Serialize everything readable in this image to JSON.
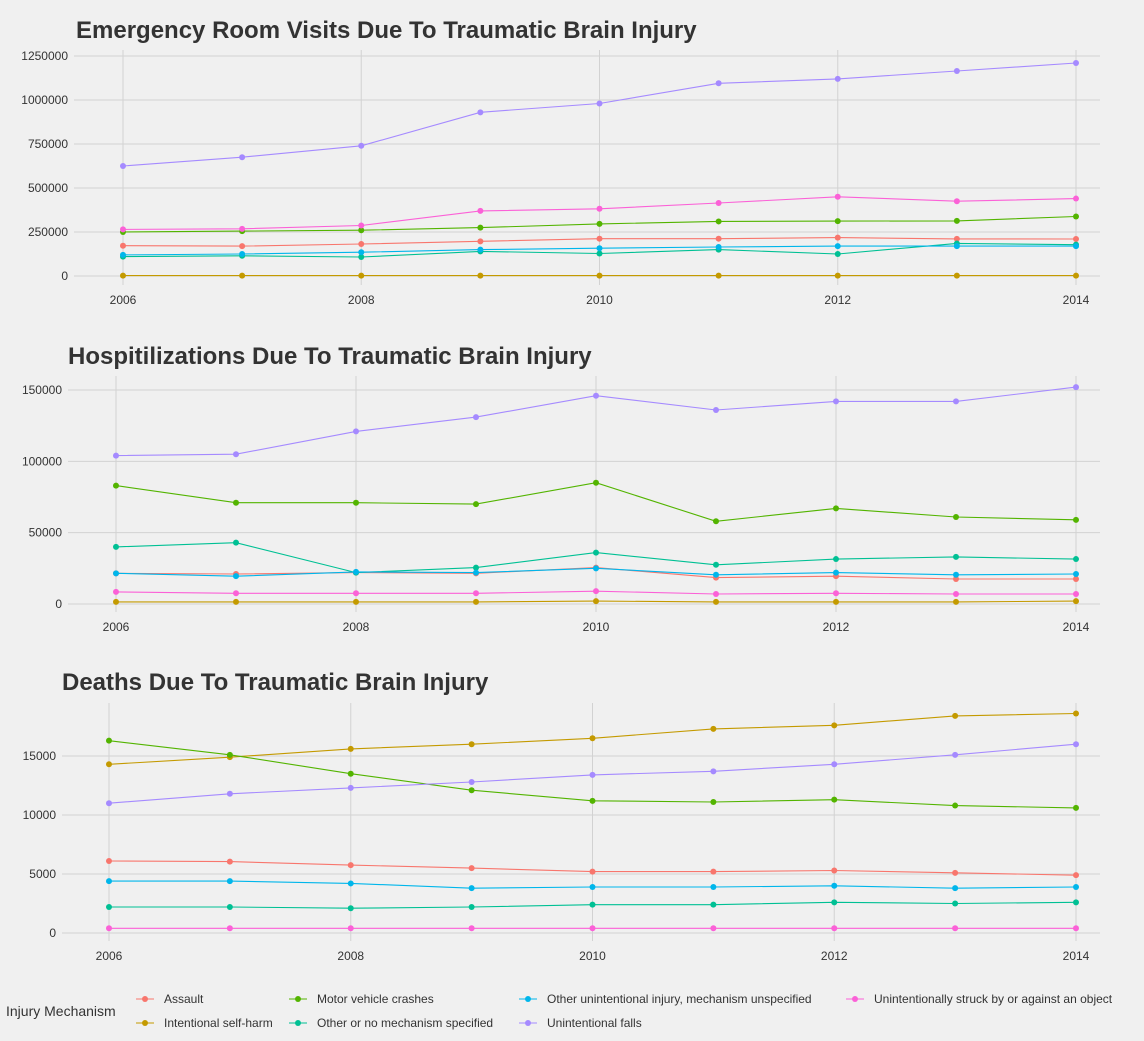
{
  "legend": {
    "title": "Injury Mechanism",
    "entries": [
      {
        "key": "assault",
        "label": "Assault",
        "color": "#F8766D"
      },
      {
        "key": "self_harm",
        "label": "Intentional self-harm",
        "color": "#C49A00"
      },
      {
        "key": "mvc",
        "label": "Motor vehicle crashes",
        "color": "#53B400"
      },
      {
        "key": "other",
        "label": "Other or no mechanism specified",
        "color": "#00C094"
      },
      {
        "key": "unspecified",
        "label": "Other unintentional injury, mechanism unspecified",
        "color": "#00B6EB"
      },
      {
        "key": "falls",
        "label": "Unintentional falls",
        "color": "#A58AFF"
      },
      {
        "key": "struck",
        "label": "Unintentionally struck by or against an object",
        "color": "#FB61D7"
      }
    ]
  },
  "chart_data": [
    {
      "type": "line",
      "title": "Emergency Room Visits Due To Traumatic Brain Injury",
      "xlabel": "",
      "ylabel": "",
      "x": [
        2006,
        2007,
        2008,
        2009,
        2010,
        2011,
        2012,
        2013,
        2014
      ],
      "x_ticks": [
        2006,
        2008,
        2010,
        2012,
        2014
      ],
      "y_ticks": [
        0,
        250000,
        500000,
        750000,
        1000000,
        1250000
      ],
      "ylim": [
        -10000,
        1290000
      ],
      "grid": true,
      "series": [
        {
          "key": "assault",
          "values": [
            172000,
            170000,
            182000,
            197000,
            212000,
            212000,
            218000,
            211000,
            210000
          ]
        },
        {
          "key": "self_harm",
          "values": [
            2000,
            2000,
            2000,
            2000,
            2000,
            2000,
            2000,
            2000,
            2000
          ]
        },
        {
          "key": "mvc",
          "values": [
            250000,
            255000,
            260000,
            275000,
            296000,
            310000,
            312000,
            313000,
            338000
          ]
        },
        {
          "key": "other",
          "values": [
            110000,
            115000,
            108000,
            140000,
            128000,
            150000,
            125000,
            185000,
            178000
          ]
        },
        {
          "key": "unspecified",
          "values": [
            120000,
            125000,
            135000,
            150000,
            158000,
            165000,
            170000,
            170000,
            170000
          ]
        },
        {
          "key": "falls",
          "values": [
            625000,
            675000,
            740000,
            930000,
            980000,
            1095000,
            1120000,
            1165000,
            1210000
          ]
        },
        {
          "key": "struck",
          "values": [
            265000,
            268000,
            287000,
            370000,
            382000,
            415000,
            450000,
            425000,
            440000
          ]
        }
      ]
    },
    {
      "type": "line",
      "title": "Hospitilizations Due To Traumatic Brain Injury",
      "xlabel": "",
      "ylabel": "",
      "x": [
        2006,
        2007,
        2008,
        2009,
        2010,
        2011,
        2012,
        2013,
        2014
      ],
      "x_ticks": [
        2006,
        2008,
        2010,
        2012,
        2014
      ],
      "y_ticks": [
        0,
        50000,
        100000,
        150000
      ],
      "ylim": [
        -5000,
        160000
      ],
      "grid": true,
      "series": [
        {
          "key": "assault",
          "values": [
            21500,
            21000,
            22000,
            21500,
            25500,
            18500,
            19500,
            17500,
            17500
          ]
        },
        {
          "key": "self_harm",
          "values": [
            1500,
            1500,
            1500,
            1500,
            2000,
            1500,
            1500,
            1500,
            2000
          ]
        },
        {
          "key": "mvc",
          "values": [
            83000,
            71000,
            71000,
            70000,
            85000,
            58000,
            67000,
            61000,
            59000
          ]
        },
        {
          "key": "other",
          "values": [
            40000,
            43000,
            22000,
            25500,
            36000,
            27500,
            31500,
            33000,
            31500
          ]
        },
        {
          "key": "unspecified",
          "values": [
            21500,
            19500,
            22500,
            22000,
            25000,
            20500,
            22000,
            20500,
            21000
          ]
        },
        {
          "key": "falls",
          "values": [
            104000,
            105000,
            121000,
            131000,
            146000,
            136000,
            142000,
            142000,
            152000
          ]
        },
        {
          "key": "struck",
          "values": [
            8500,
            7500,
            7500,
            7500,
            9000,
            7000,
            7500,
            7000,
            7000
          ]
        }
      ]
    },
    {
      "type": "line",
      "title": "Deaths Due To Traumatic Brain Injury",
      "xlabel": "",
      "ylabel": "",
      "x": [
        2006,
        2007,
        2008,
        2009,
        2010,
        2011,
        2012,
        2013,
        2014
      ],
      "x_ticks": [
        2006,
        2008,
        2010,
        2012,
        2014
      ],
      "y_ticks": [
        0,
        5000,
        10000,
        15000
      ],
      "ylim": [
        -1000,
        19500
      ],
      "grid": true,
      "series": [
        {
          "key": "assault",
          "values": [
            6100,
            6050,
            5750,
            5500,
            5200,
            5200,
            5300,
            5100,
            4900
          ]
        },
        {
          "key": "self_harm",
          "values": [
            14300,
            14900,
            15600,
            16000,
            16500,
            17300,
            17600,
            18400,
            18600
          ]
        },
        {
          "key": "mvc",
          "values": [
            16300,
            15100,
            13500,
            12100,
            11200,
            11100,
            11300,
            10800,
            10600
          ]
        },
        {
          "key": "other",
          "values": [
            2200,
            2200,
            2100,
            2200,
            2400,
            2400,
            2600,
            2500,
            2600
          ]
        },
        {
          "key": "unspecified",
          "values": [
            4400,
            4400,
            4200,
            3800,
            3900,
            3900,
            4000,
            3800,
            3900
          ]
        },
        {
          "key": "falls",
          "values": [
            11000,
            11800,
            12300,
            12800,
            13400,
            13700,
            14300,
            15100,
            16000
          ]
        },
        {
          "key": "struck",
          "values": [
            400,
            400,
            400,
            400,
            400,
            400,
            400,
            400,
            400
          ]
        }
      ]
    }
  ]
}
